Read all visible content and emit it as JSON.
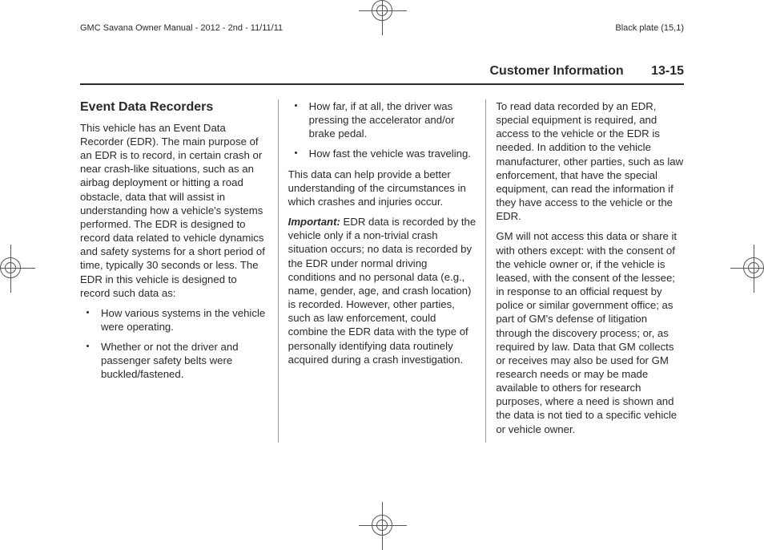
{
  "header": {
    "left": "GMC Savana Owner Manual - 2012 - 2nd - 11/11/11",
    "right": "Black plate (15,1)"
  },
  "chapter": {
    "title": "Customer Information",
    "pageNum": "13-15"
  },
  "col1": {
    "heading": "Event Data Recorders",
    "para1": "This vehicle has an Event Data Recorder (EDR). The main purpose of an EDR is to record, in certain crash or near crash-like situations, such as an airbag deployment or hitting a road obstacle, data that will assist in understanding how a vehicle's systems performed. The EDR is designed to record data related to vehicle dynamics and safety systems for a short period of time, typically 30 seconds or less. The EDR in this vehicle is designed to record such data as:",
    "bullets": [
      "How various systems in the vehicle were operating.",
      "Whether or not the driver and passenger safety belts were buckled/fastened."
    ]
  },
  "col2": {
    "bullets": [
      "How far, if at all, the driver was pressing the accelerator and/or brake pedal.",
      "How fast the vehicle was traveling."
    ],
    "para1": "This data can help provide a better understanding of the circumstances in which crashes and injuries occur.",
    "importantLabel": "Important:",
    "para2": " EDR data is recorded by the vehicle only if a non-trivial crash situation occurs; no data is recorded by the EDR under normal driving conditions and no personal data (e.g., name, gender, age, and crash location) is recorded. However, other parties, such as law enforcement, could combine the EDR data with the type of personally identifying data routinely acquired during a crash investigation."
  },
  "col3": {
    "para1": "To read data recorded by an EDR, special equipment is required, and access to the vehicle or the EDR is needed. In addition to the vehicle manufacturer, other parties, such as law enforcement, that have the special equipment, can read the information if they have access to the vehicle or the EDR.",
    "para2": "GM will not access this data or share it with others except: with the consent of the vehicle owner or, if the vehicle is leased, with the consent of the lessee; in response to an official request by police or similar government office; as part of GM's defense of litigation through the discovery process; or, as required by law. Data that GM collects or receives may also be used for GM research needs or may be made available to others for research purposes, where a need is shown and the data is not tied to a specific vehicle or vehicle owner."
  }
}
